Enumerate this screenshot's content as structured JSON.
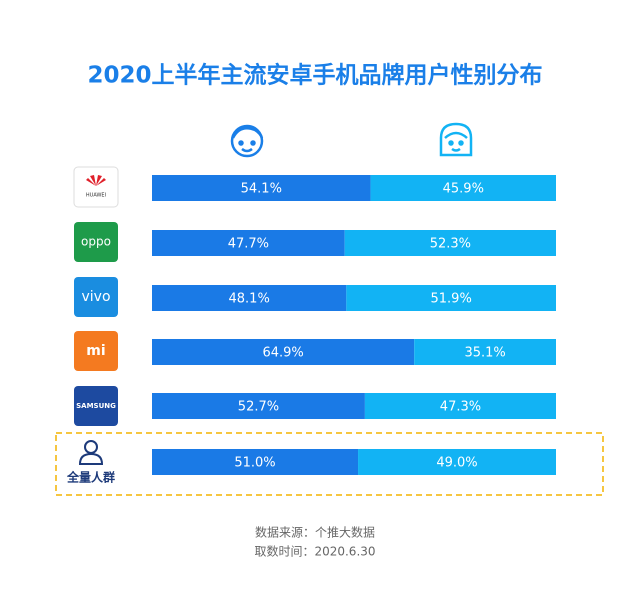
{
  "chart_data": {
    "type": "stacked-bar",
    "title": "2020上半年主流安卓手机品牌用户性别分布",
    "categories": [
      "HUAWEI",
      "oppo",
      "vivo",
      "mi",
      "SAMSUNG",
      "全量人群"
    ],
    "series": [
      {
        "color": "#1a7ae6",
        "values": [
          54.1,
          47.7,
          48.1,
          64.9,
          52.7,
          51.0
        ],
        "value_labels": [
          "54.1%",
          "47.7%",
          "48.1%",
          "64.9%",
          "52.7%",
          "51.0%"
        ]
      },
      {
        "color": "#12b3f4",
        "values": [
          45.9,
          52.3,
          51.9,
          35.1,
          47.3,
          49.0
        ],
        "value_labels": [
          "45.9%",
          "52.3%",
          "51.9%",
          "35.1%",
          "47.3%",
          "49.0%"
        ]
      }
    ],
    "footer": [
      "数据来源：个推大数据",
      "取数时间：2020.6.30"
    ]
  }
}
